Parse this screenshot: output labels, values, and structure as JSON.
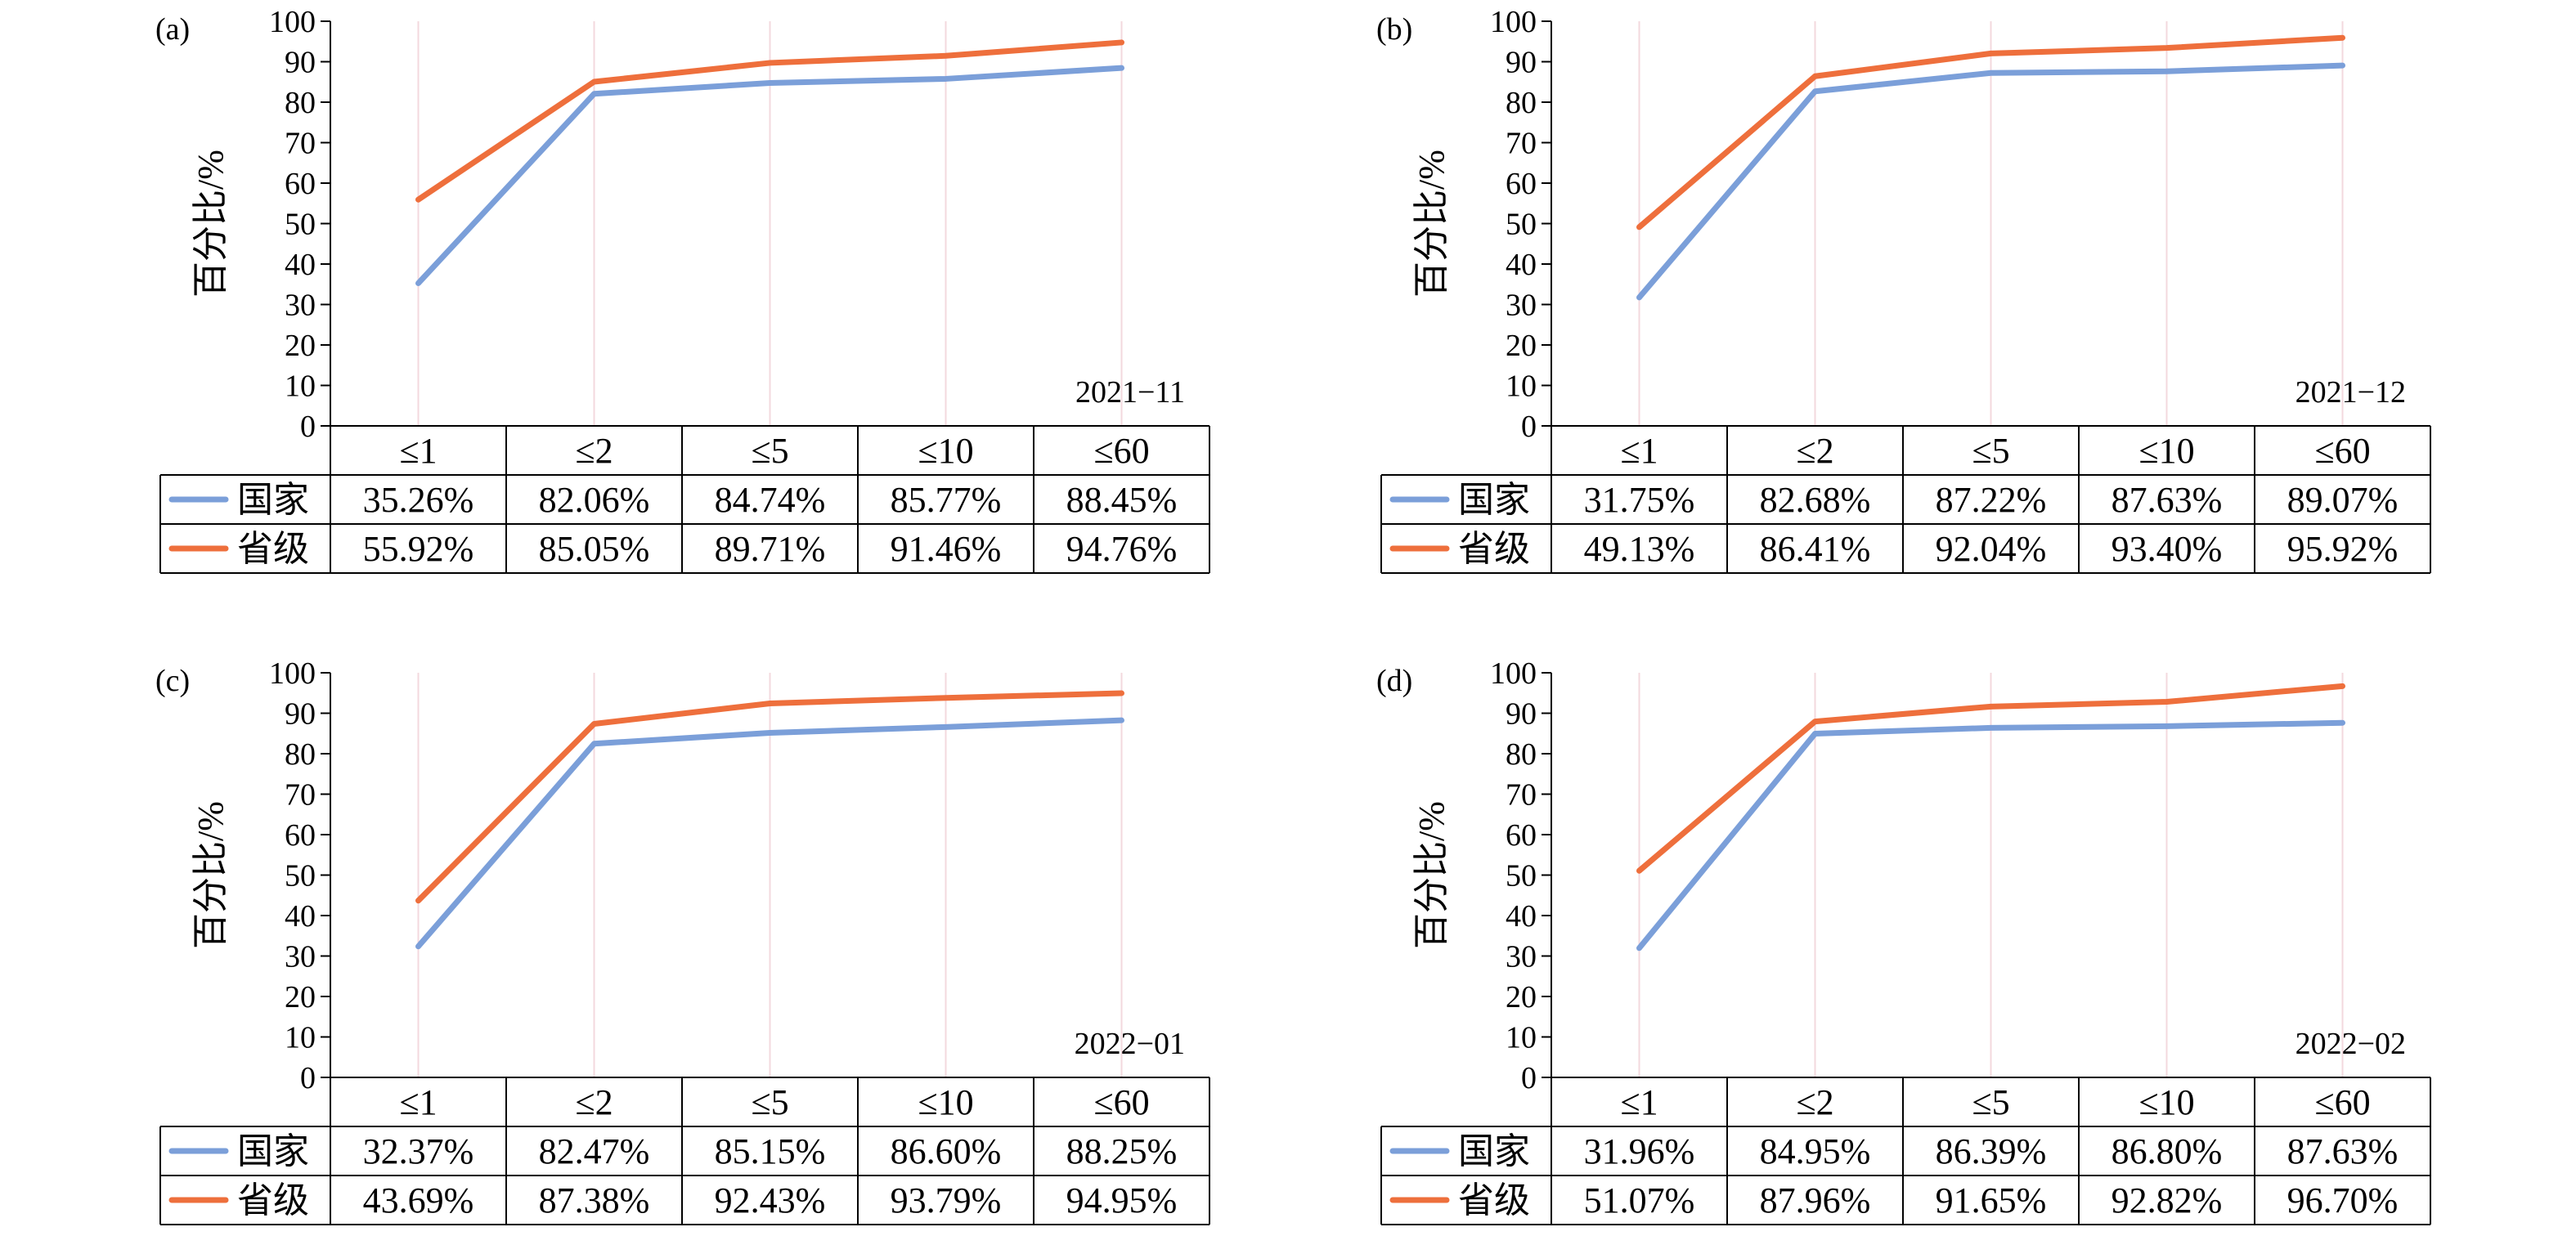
{
  "chart_data": [
    {
      "type": "line",
      "panel": "(a)",
      "period": "2021−11",
      "ylabel": "百分比/%",
      "ylim": [
        0,
        100
      ],
      "yticks": [
        0,
        10,
        20,
        30,
        40,
        50,
        60,
        70,
        80,
        90,
        100
      ],
      "categories": [
        "≤1",
        "≤2",
        "≤5",
        "≤10",
        "≤60"
      ],
      "grid": "vertical",
      "legend": "in data table rows",
      "series": [
        {
          "name": "国家",
          "color": "#7b9fd9",
          "values": [
            35.26,
            82.06,
            84.74,
            85.77,
            88.45
          ],
          "labels": [
            "35.26%",
            "82.06%",
            "84.74%",
            "85.77%",
            "88.45%"
          ]
        },
        {
          "name": "省级",
          "color": "#ee6f3c",
          "values": [
            55.92,
            85.05,
            89.71,
            91.46,
            94.76
          ],
          "labels": [
            "55.92%",
            "85.05%",
            "89.71%",
            "91.46%",
            "94.76%"
          ]
        }
      ]
    },
    {
      "type": "line",
      "panel": "(b)",
      "period": "2021−12",
      "ylabel": "百分比/%",
      "ylim": [
        0,
        100
      ],
      "yticks": [
        0,
        10,
        20,
        30,
        40,
        50,
        60,
        70,
        80,
        90,
        100
      ],
      "categories": [
        "≤1",
        "≤2",
        "≤5",
        "≤10",
        "≤60"
      ],
      "grid": "vertical",
      "legend": "in data table rows",
      "series": [
        {
          "name": "国家",
          "color": "#7b9fd9",
          "values": [
            31.75,
            82.68,
            87.22,
            87.63,
            89.07
          ],
          "labels": [
            "31.75%",
            "82.68%",
            "87.22%",
            "87.63%",
            "89.07%"
          ]
        },
        {
          "name": "省级",
          "color": "#ee6f3c",
          "values": [
            49.13,
            86.41,
            92.04,
            93.4,
            95.92
          ],
          "labels": [
            "49.13%",
            "86.41%",
            "92.04%",
            "93.40%",
            "95.92%"
          ]
        }
      ]
    },
    {
      "type": "line",
      "panel": "(c)",
      "period": "2022−01",
      "ylabel": "百分比/%",
      "ylim": [
        0,
        100
      ],
      "yticks": [
        0,
        10,
        20,
        30,
        40,
        50,
        60,
        70,
        80,
        90,
        100
      ],
      "categories": [
        "≤1",
        "≤2",
        "≤5",
        "≤10",
        "≤60"
      ],
      "grid": "vertical",
      "legend": "in data table rows",
      "series": [
        {
          "name": "国家",
          "color": "#7b9fd9",
          "values": [
            32.37,
            82.47,
            85.15,
            86.6,
            88.25
          ],
          "labels": [
            "32.37%",
            "82.47%",
            "85.15%",
            "86.60%",
            "88.25%"
          ]
        },
        {
          "name": "省级",
          "color": "#ee6f3c",
          "values": [
            43.69,
            87.38,
            92.43,
            93.79,
            94.95
          ],
          "labels": [
            "43.69%",
            "87.38%",
            "92.43%",
            "93.79%",
            "94.95%"
          ]
        }
      ]
    },
    {
      "type": "line",
      "panel": "(d)",
      "period": "2022−02",
      "ylabel": "百分比/%",
      "ylim": [
        0,
        100
      ],
      "yticks": [
        0,
        10,
        20,
        30,
        40,
        50,
        60,
        70,
        80,
        90,
        100
      ],
      "categories": [
        "≤1",
        "≤2",
        "≤5",
        "≤10",
        "≤60"
      ],
      "grid": "vertical",
      "legend": "in data table rows",
      "series": [
        {
          "name": "国家",
          "color": "#7b9fd9",
          "values": [
            31.96,
            84.95,
            86.39,
            86.8,
            87.63
          ],
          "labels": [
            "31.96%",
            "84.95%",
            "86.39%",
            "86.80%",
            "87.63%"
          ]
        },
        {
          "name": "省级",
          "color": "#ee6f3c",
          "values": [
            51.07,
            87.96,
            91.65,
            92.82,
            96.7
          ],
          "labels": [
            "51.07%",
            "87.96%",
            "91.65%",
            "92.82%",
            "96.70%"
          ]
        }
      ]
    }
  ]
}
